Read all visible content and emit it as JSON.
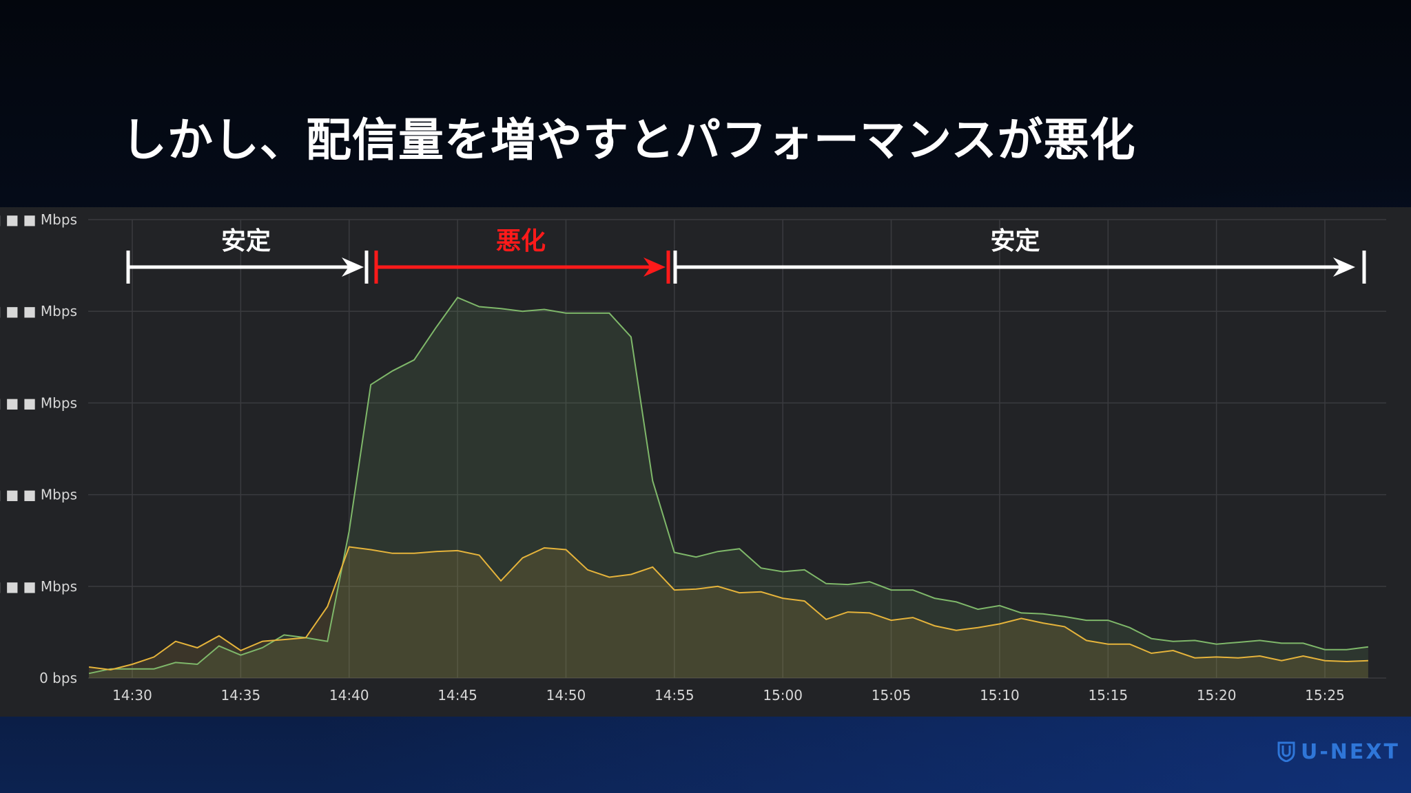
{
  "slide": {
    "title": "しかし、配信量を増やすとパフォーマンスが悪化"
  },
  "brand": {
    "name": "U-NEXT",
    "color": "#2f76d8",
    "icon": "shield-icon"
  },
  "phases": [
    {
      "label": "安定",
      "start": "14:28",
      "end": "14:40",
      "color": "#ffffff"
    },
    {
      "label": "悪化",
      "start": "14:40",
      "end": "14:55",
      "color": "#ff1a1a"
    },
    {
      "label": "安定",
      "start": "14:55",
      "end": "15:26",
      "color": "#ffffff"
    }
  ],
  "chart_data": {
    "type": "area",
    "x_unit": "time",
    "xlim": [
      "14:28",
      "15:28"
    ],
    "x_ticks": [
      "14:30",
      "14:35",
      "14:40",
      "14:45",
      "14:50",
      "14:55",
      "15:00",
      "15:05",
      "15:10",
      "15:15",
      "15:20",
      "15:25"
    ],
    "y_ticks": [
      "0 bps",
      "■ ■ ■ ■ Mbps",
      "■ ■ ■ ■ Mbps",
      "■ ■ ■ ■ Mbps",
      "■ ■ ■ ■ Mbps",
      "■ ■ ■ ■ Mbps"
    ],
    "y_tick_note": "Y tick numbers are blurred/redacted in the original; only '0 bps' and the trailing 'bps' suffix are legible",
    "ylim": [
      0,
      5
    ],
    "grid": true,
    "series": [
      {
        "color": "#7fb86a",
        "points": [
          [
            "14:28",
            0.05
          ],
          [
            "14:29",
            0.1
          ],
          [
            "14:30",
            0.1
          ],
          [
            "14:31",
            0.1
          ],
          [
            "14:32",
            0.17
          ],
          [
            "14:33",
            0.15
          ],
          [
            "14:34",
            0.35
          ],
          [
            "14:35",
            0.25
          ],
          [
            "14:36",
            0.33
          ],
          [
            "14:37",
            0.47
          ],
          [
            "14:38",
            0.44
          ],
          [
            "14:39",
            0.4
          ],
          [
            "14:40",
            1.6
          ],
          [
            "14:41",
            3.2
          ],
          [
            "14:42",
            3.35
          ],
          [
            "14:43",
            3.47
          ],
          [
            "14:44",
            3.82
          ],
          [
            "14:45",
            4.15
          ],
          [
            "14:46",
            4.05
          ],
          [
            "14:47",
            4.03
          ],
          [
            "14:48",
            4.0
          ],
          [
            "14:49",
            4.02
          ],
          [
            "14:50",
            3.98
          ],
          [
            "14:51",
            3.98
          ],
          [
            "14:52",
            3.98
          ],
          [
            "14:53",
            3.72
          ],
          [
            "14:54",
            2.15
          ],
          [
            "14:55",
            1.37
          ],
          [
            "14:56",
            1.32
          ],
          [
            "14:57",
            1.38
          ],
          [
            "14:58",
            1.41
          ],
          [
            "14:59",
            1.2
          ],
          [
            "15:00",
            1.16
          ],
          [
            "15:01",
            1.18
          ],
          [
            "15:02",
            1.03
          ],
          [
            "15:03",
            1.02
          ],
          [
            "15:04",
            1.05
          ],
          [
            "15:05",
            0.96
          ],
          [
            "15:06",
            0.96
          ],
          [
            "15:07",
            0.87
          ],
          [
            "15:08",
            0.83
          ],
          [
            "15:09",
            0.75
          ],
          [
            "15:10",
            0.79
          ],
          [
            "15:11",
            0.71
          ],
          [
            "15:12",
            0.7
          ],
          [
            "15:13",
            0.67
          ],
          [
            "15:14",
            0.63
          ],
          [
            "15:15",
            0.63
          ],
          [
            "15:16",
            0.55
          ],
          [
            "15:17",
            0.43
          ],
          [
            "15:18",
            0.4
          ],
          [
            "15:19",
            0.41
          ],
          [
            "15:20",
            0.37
          ],
          [
            "15:21",
            0.39
          ],
          [
            "15:22",
            0.41
          ],
          [
            "15:23",
            0.38
          ],
          [
            "15:24",
            0.38
          ],
          [
            "15:25",
            0.31
          ],
          [
            "15:26",
            0.31
          ],
          [
            "15:27",
            0.34
          ]
        ]
      },
      {
        "color": "#e6b43b",
        "points": [
          [
            "14:28",
            0.12
          ],
          [
            "14:29",
            0.09
          ],
          [
            "14:30",
            0.15
          ],
          [
            "14:31",
            0.23
          ],
          [
            "14:32",
            0.4
          ],
          [
            "14:33",
            0.33
          ],
          [
            "14:34",
            0.46
          ],
          [
            "14:35",
            0.3
          ],
          [
            "14:36",
            0.4
          ],
          [
            "14:37",
            0.42
          ],
          [
            "14:38",
            0.44
          ],
          [
            "14:39",
            0.78
          ],
          [
            "14:40",
            1.43
          ],
          [
            "14:41",
            1.4
          ],
          [
            "14:42",
            1.36
          ],
          [
            "14:43",
            1.36
          ],
          [
            "14:44",
            1.38
          ],
          [
            "14:45",
            1.39
          ],
          [
            "14:46",
            1.34
          ],
          [
            "14:47",
            1.06
          ],
          [
            "14:48",
            1.31
          ],
          [
            "14:49",
            1.42
          ],
          [
            "14:50",
            1.4
          ],
          [
            "14:51",
            1.18
          ],
          [
            "14:52",
            1.1
          ],
          [
            "14:53",
            1.13
          ],
          [
            "14:54",
            1.21
          ],
          [
            "14:55",
            0.96
          ],
          [
            "14:56",
            0.97
          ],
          [
            "14:57",
            1.0
          ],
          [
            "14:58",
            0.93
          ],
          [
            "14:59",
            0.94
          ],
          [
            "15:00",
            0.87
          ],
          [
            "15:01",
            0.84
          ],
          [
            "15:02",
            0.64
          ],
          [
            "15:03",
            0.72
          ],
          [
            "15:04",
            0.71
          ],
          [
            "15:05",
            0.63
          ],
          [
            "15:06",
            0.66
          ],
          [
            "15:07",
            0.57
          ],
          [
            "15:08",
            0.52
          ],
          [
            "15:09",
            0.55
          ],
          [
            "15:10",
            0.59
          ],
          [
            "15:11",
            0.65
          ],
          [
            "15:12",
            0.6
          ],
          [
            "15:13",
            0.56
          ],
          [
            "15:14",
            0.41
          ],
          [
            "15:15",
            0.37
          ],
          [
            "15:16",
            0.37
          ],
          [
            "15:17",
            0.27
          ],
          [
            "15:18",
            0.3
          ],
          [
            "15:19",
            0.22
          ],
          [
            "15:20",
            0.23
          ],
          [
            "15:21",
            0.22
          ],
          [
            "15:22",
            0.24
          ],
          [
            "15:23",
            0.19
          ],
          [
            "15:24",
            0.24
          ],
          [
            "15:25",
            0.19
          ],
          [
            "15:26",
            0.18
          ],
          [
            "15:27",
            0.19
          ]
        ]
      }
    ]
  }
}
